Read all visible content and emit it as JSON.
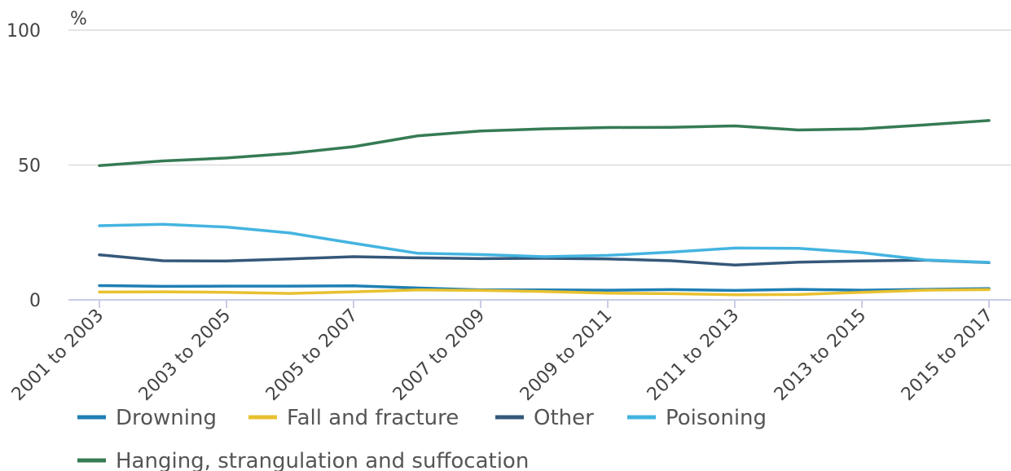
{
  "chart_data": {
    "type": "line",
    "y_unit_label": "%",
    "ylim": [
      0,
      100
    ],
    "y_ticks": [
      0,
      50,
      100
    ],
    "grid": true,
    "legend_position": "bottom",
    "x": [
      "2001 to 2003",
      "2002 to 2004",
      "2003 to 2005",
      "2004 to 2006",
      "2005 to 2007",
      "2006 to 2008",
      "2007 to 2009",
      "2008 to 2010",
      "2009 to 2011",
      "2010 to 2012",
      "2011 to 2013",
      "2012 to 2014",
      "2013 to 2015",
      "2014 to 2016",
      "2015 to 2017"
    ],
    "x_tick_labels": [
      "2001 to 2003",
      "2003 to 2005",
      "2005 to 2007",
      "2007 to 2009",
      "2009 to 2011",
      "2011 to 2013",
      "2013 to 2015",
      "2015 to 2017"
    ],
    "series": [
      {
        "name": "Drowning",
        "color": "#1f7fb4",
        "values": [
          5.3,
          5.0,
          5.1,
          5.1,
          5.2,
          4.4,
          3.7,
          3.7,
          3.6,
          3.8,
          3.5,
          3.9,
          3.6,
          3.9,
          4.2
        ]
      },
      {
        "name": "Fall and fracture",
        "color": "#e8c130",
        "values": [
          2.9,
          3.0,
          2.8,
          2.4,
          3.0,
          3.7,
          3.5,
          3.1,
          2.5,
          2.3,
          1.9,
          2.0,
          2.8,
          3.6,
          3.8
        ]
      },
      {
        "name": "Other",
        "color": "#35587a",
        "values": [
          16.7,
          14.5,
          14.4,
          15.2,
          16.0,
          15.6,
          15.3,
          15.4,
          15.2,
          14.5,
          12.9,
          14.0,
          14.4,
          14.7,
          13.8
        ]
      },
      {
        "name": "Poisoning",
        "color": "#44b4e0",
        "values": [
          27.5,
          28.0,
          27.0,
          24.8,
          21.0,
          17.3,
          16.8,
          16.0,
          16.5,
          17.7,
          19.2,
          19.1,
          17.5,
          14.8,
          13.9
        ]
      },
      {
        "name": "Hanging, strangulation and suffocation",
        "color": "#357b54",
        "values": [
          49.8,
          51.5,
          52.6,
          54.3,
          56.8,
          60.8,
          62.6,
          63.4,
          63.9,
          64.0,
          64.5,
          63.0,
          63.4,
          64.9,
          66.5
        ]
      }
    ]
  }
}
